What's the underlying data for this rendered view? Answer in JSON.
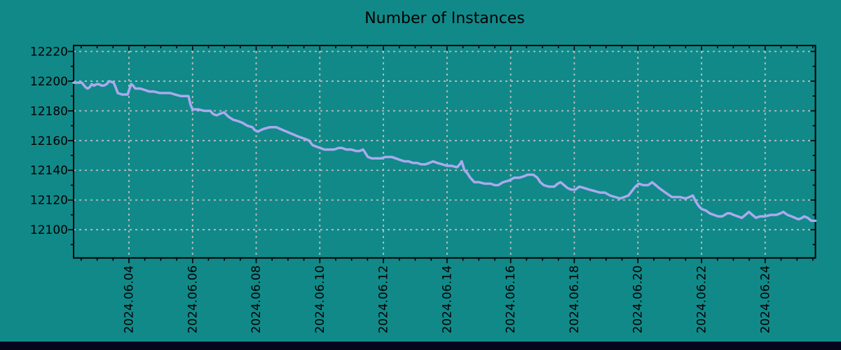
{
  "colors": {
    "background": "#118989",
    "line": "#aaaaee",
    "grid": "#bdbdbd",
    "axis": "#000000",
    "text": "#000000",
    "bottom_bar": "#04041c"
  },
  "chart_data": {
    "type": "line",
    "title": "Number of Instances",
    "xlabel": "",
    "ylabel": "",
    "x_unit": "date (fractional day of June 2024)",
    "xlim": [
      2.26,
      25.58
    ],
    "ylim": [
      12081,
      12224
    ],
    "grid": {
      "style": "dashed",
      "on_major_ticks": true
    },
    "legend": "none",
    "x_major_ticks": [
      {
        "day": 4,
        "label": "2024.06.04"
      },
      {
        "day": 6,
        "label": "2024.06.06"
      },
      {
        "day": 8,
        "label": "2024.06.08"
      },
      {
        "day": 10,
        "label": "2024.06.10"
      },
      {
        "day": 12,
        "label": "2024.06.12"
      },
      {
        "day": 14,
        "label": "2024.06.14"
      },
      {
        "day": 16,
        "label": "2024.06.16"
      },
      {
        "day": 18,
        "label": "2024.06.18"
      },
      {
        "day": 20,
        "label": "2024.06.20"
      },
      {
        "day": 22,
        "label": "2024.06.22"
      },
      {
        "day": 24,
        "label": "2024.06.24"
      }
    ],
    "x_minor_tick_step_days": 0.5,
    "y_major_ticks": [
      {
        "value": 12100,
        "label": "12100"
      },
      {
        "value": 12120,
        "label": "12120"
      },
      {
        "value": 12140,
        "label": "12140"
      },
      {
        "value": 12160,
        "label": "12160"
      },
      {
        "value": 12180,
        "label": "12180"
      },
      {
        "value": 12200,
        "label": "12200"
      },
      {
        "value": 12220,
        "label": "12220"
      }
    ],
    "y_minor_tick_step": 10,
    "series": [
      {
        "name": "instances",
        "color": "#aaaaee",
        "points": [
          [
            2.26,
            12199
          ],
          [
            2.41,
            12199
          ],
          [
            2.52,
            12199
          ],
          [
            2.63,
            12196
          ],
          [
            2.7,
            12195
          ],
          [
            2.77,
            12196
          ],
          [
            2.83,
            12198
          ],
          [
            2.9,
            12197
          ],
          [
            2.99,
            12198
          ],
          [
            3.05,
            12198
          ],
          [
            3.14,
            12197
          ],
          [
            3.21,
            12197
          ],
          [
            3.3,
            12198
          ],
          [
            3.38,
            12200
          ],
          [
            3.52,
            12199
          ],
          [
            3.58,
            12196
          ],
          [
            3.65,
            12192
          ],
          [
            3.78,
            12191
          ],
          [
            3.96,
            12191
          ],
          [
            4.02,
            12195
          ],
          [
            4.07,
            12198
          ],
          [
            4.13,
            12197
          ],
          [
            4.2,
            12195
          ],
          [
            4.35,
            12195
          ],
          [
            4.51,
            12194
          ],
          [
            4.64,
            12193
          ],
          [
            4.79,
            12193
          ],
          [
            4.97,
            12192
          ],
          [
            5.12,
            12192
          ],
          [
            5.3,
            12192
          ],
          [
            5.45,
            12191
          ],
          [
            5.63,
            12190
          ],
          [
            5.78,
            12190
          ],
          [
            5.87,
            12190
          ],
          [
            5.94,
            12184
          ],
          [
            6.0,
            12181
          ],
          [
            6.18,
            12181
          ],
          [
            6.38,
            12180
          ],
          [
            6.56,
            12180
          ],
          [
            6.64,
            12178
          ],
          [
            6.75,
            12177
          ],
          [
            6.86,
            12178
          ],
          [
            6.99,
            12179
          ],
          [
            7.13,
            12176
          ],
          [
            7.28,
            12174
          ],
          [
            7.44,
            12173
          ],
          [
            7.57,
            12172
          ],
          [
            7.72,
            12170
          ],
          [
            7.88,
            12169
          ],
          [
            7.96,
            12167
          ],
          [
            8.05,
            12166
          ],
          [
            8.14,
            12167
          ],
          [
            8.25,
            12168
          ],
          [
            8.43,
            12169
          ],
          [
            8.63,
            12169
          ],
          [
            8.74,
            12168
          ],
          [
            8.85,
            12167
          ],
          [
            8.96,
            12166
          ],
          [
            9.07,
            12165
          ],
          [
            9.18,
            12164
          ],
          [
            9.29,
            12163
          ],
          [
            9.42,
            12162
          ],
          [
            9.55,
            12161
          ],
          [
            9.66,
            12160
          ],
          [
            9.77,
            12157
          ],
          [
            9.88,
            12156
          ],
          [
            10.01,
            12155
          ],
          [
            10.15,
            12154
          ],
          [
            10.3,
            12154
          ],
          [
            10.45,
            12154
          ],
          [
            10.59,
            12155
          ],
          [
            10.7,
            12155
          ],
          [
            10.83,
            12154
          ],
          [
            10.98,
            12154
          ],
          [
            11.14,
            12153
          ],
          [
            11.25,
            12153
          ],
          [
            11.36,
            12154
          ],
          [
            11.42,
            12152
          ],
          [
            11.51,
            12149
          ],
          [
            11.64,
            12148
          ],
          [
            11.8,
            12148
          ],
          [
            11.93,
            12148
          ],
          [
            12.06,
            12149
          ],
          [
            12.15,
            12149
          ],
          [
            12.26,
            12149
          ],
          [
            12.39,
            12148
          ],
          [
            12.52,
            12147
          ],
          [
            12.66,
            12146
          ],
          [
            12.79,
            12146
          ],
          [
            12.92,
            12145
          ],
          [
            13.05,
            12145
          ],
          [
            13.19,
            12144
          ],
          [
            13.32,
            12144
          ],
          [
            13.45,
            12145
          ],
          [
            13.56,
            12146
          ],
          [
            13.69,
            12145
          ],
          [
            13.85,
            12144
          ],
          [
            14.0,
            12143
          ],
          [
            14.15,
            12143
          ],
          [
            14.31,
            12142
          ],
          [
            14.4,
            12144
          ],
          [
            14.46,
            12146
          ],
          [
            14.55,
            12140
          ],
          [
            14.64,
            12138
          ],
          [
            14.73,
            12135
          ],
          [
            14.86,
            12132
          ],
          [
            15.01,
            12132
          ],
          [
            15.19,
            12131
          ],
          [
            15.37,
            12131
          ],
          [
            15.5,
            12130
          ],
          [
            15.61,
            12130
          ],
          [
            15.76,
            12132
          ],
          [
            15.94,
            12133
          ],
          [
            16.11,
            12135
          ],
          [
            16.27,
            12135
          ],
          [
            16.42,
            12136
          ],
          [
            16.53,
            12137
          ],
          [
            16.71,
            12137
          ],
          [
            16.84,
            12135
          ],
          [
            16.93,
            12132
          ],
          [
            17.04,
            12130
          ],
          [
            17.19,
            12129
          ],
          [
            17.37,
            12129
          ],
          [
            17.48,
            12131
          ],
          [
            17.57,
            12132
          ],
          [
            17.68,
            12130
          ],
          [
            17.79,
            12128
          ],
          [
            17.9,
            12127
          ],
          [
            18.03,
            12127
          ],
          [
            18.16,
            12129
          ],
          [
            18.32,
            12128
          ],
          [
            18.47,
            12127
          ],
          [
            18.65,
            12126
          ],
          [
            18.8,
            12125
          ],
          [
            18.96,
            12125
          ],
          [
            19.13,
            12123
          ],
          [
            19.29,
            12122
          ],
          [
            19.44,
            12121
          ],
          [
            19.57,
            12122
          ],
          [
            19.7,
            12123
          ],
          [
            19.81,
            12126
          ],
          [
            19.92,
            12129
          ],
          [
            20.03,
            12131
          ],
          [
            20.17,
            12130
          ],
          [
            20.32,
            12130
          ],
          [
            20.45,
            12132
          ],
          [
            20.56,
            12130
          ],
          [
            20.67,
            12128
          ],
          [
            20.8,
            12126
          ],
          [
            20.93,
            12124
          ],
          [
            21.07,
            12122
          ],
          [
            21.2,
            12122
          ],
          [
            21.33,
            12122
          ],
          [
            21.49,
            12121
          ],
          [
            21.62,
            12122
          ],
          [
            21.73,
            12123
          ],
          [
            21.82,
            12119
          ],
          [
            21.91,
            12116
          ],
          [
            22.0,
            12114
          ],
          [
            22.13,
            12113
          ],
          [
            22.26,
            12111
          ],
          [
            22.39,
            12110
          ],
          [
            22.52,
            12109
          ],
          [
            22.65,
            12109
          ],
          [
            22.81,
            12111
          ],
          [
            22.9,
            12111
          ],
          [
            23.01,
            12110
          ],
          [
            23.14,
            12109
          ],
          [
            23.27,
            12108
          ],
          [
            23.38,
            12110
          ],
          [
            23.49,
            12112
          ],
          [
            23.6,
            12110
          ],
          [
            23.71,
            12108
          ],
          [
            23.84,
            12109
          ],
          [
            24.0,
            12109
          ],
          [
            24.17,
            12110
          ],
          [
            24.35,
            12110
          ],
          [
            24.48,
            12111
          ],
          [
            24.57,
            12112
          ],
          [
            24.7,
            12110
          ],
          [
            24.83,
            12109
          ],
          [
            24.94,
            12108
          ],
          [
            25.05,
            12107
          ],
          [
            25.16,
            12108
          ],
          [
            25.23,
            12109
          ],
          [
            25.34,
            12108
          ],
          [
            25.45,
            12106
          ],
          [
            25.58,
            12106
          ]
        ]
      }
    ]
  }
}
